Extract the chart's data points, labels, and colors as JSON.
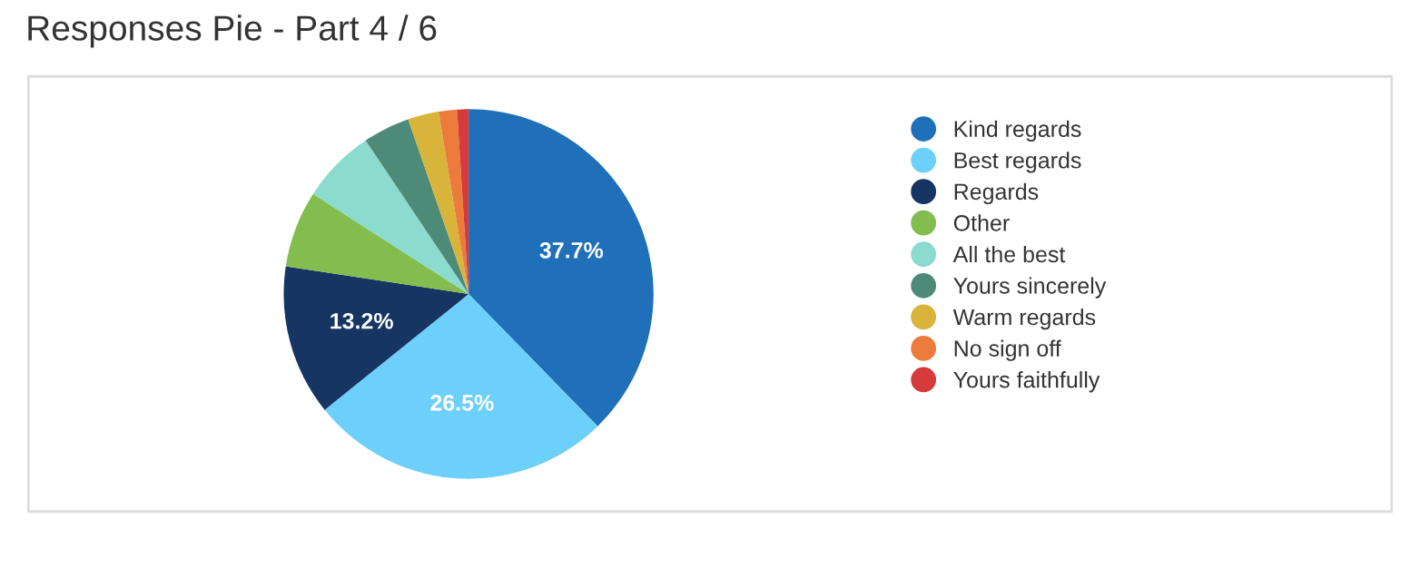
{
  "chart_data": {
    "type": "pie",
    "title": "Responses Pie - Part 4 / 6",
    "categories": [
      "Kind regards",
      "Best regards",
      "Regards",
      "Other",
      "All the best",
      "Yours sincerely",
      "Warm regards",
      "No sign off",
      "Yours faithfully"
    ],
    "values": [
      37.7,
      26.5,
      13.2,
      6.7,
      6.5,
      4.1,
      2.7,
      1.6,
      1.0
    ],
    "colors": [
      "#1f70b8",
      "#6dd0fb",
      "#173563",
      "#84bd4f",
      "#8bdbcf",
      "#4e8a78",
      "#d9b43a",
      "#ec7b3c",
      "#d63a3a"
    ],
    "value_labels": [
      "37.7%",
      "26.5%",
      "13.2%",
      null,
      null,
      null,
      null,
      null,
      null
    ],
    "legend": "right"
  }
}
